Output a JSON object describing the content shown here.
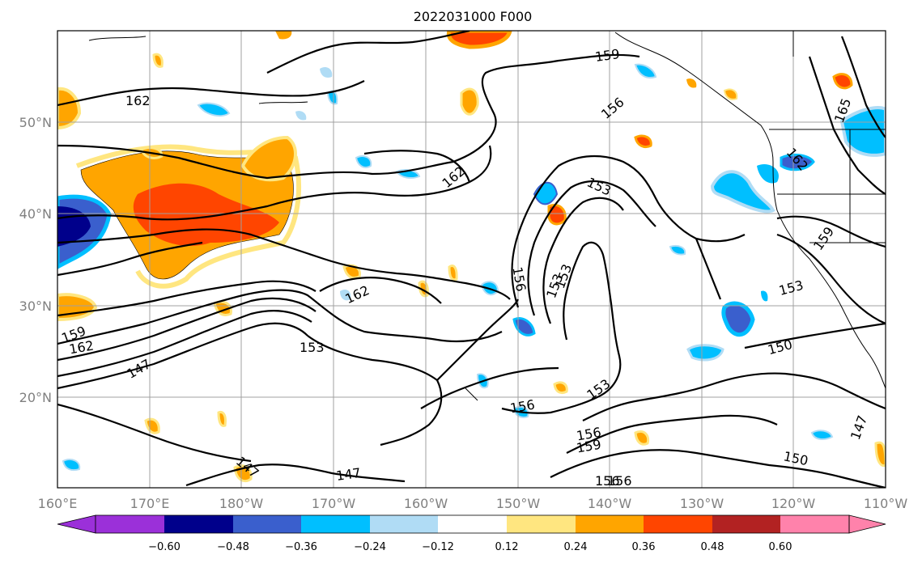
{
  "title": "2022031000 F000",
  "x_ticks": [
    "160°E",
    "170°E",
    "180°W",
    "170°W",
    "160°W",
    "150°W",
    "140°W",
    "130°W",
    "120°W",
    "110°W"
  ],
  "y_ticks": [
    "50°N",
    "40°N",
    "30°N",
    "20°N"
  ],
  "colorbar": {
    "labels": [
      "−0.60",
      "−0.48",
      "−0.36",
      "−0.24",
      "−0.12",
      "0.12",
      "0.24",
      "0.36",
      "0.48",
      "0.60"
    ],
    "colors": [
      "#9b30d9",
      "#00008b",
      "#3a5fcd",
      "#00bfff",
      "#b0dcf5",
      "#ffffff",
      "#ffe680",
      "#ffa500",
      "#ff4500",
      "#b22222",
      "#ff82ab"
    ]
  },
  "contour_labels": [
    "162",
    "159",
    "156",
    "156",
    "162",
    "153",
    "153",
    "159",
    "162",
    "165",
    "162",
    "153",
    "156",
    "153",
    "162",
    "159",
    "147",
    "153",
    "153",
    "156",
    "156",
    "159",
    "150",
    "150",
    "147",
    "147",
    "147",
    "156"
  ]
}
